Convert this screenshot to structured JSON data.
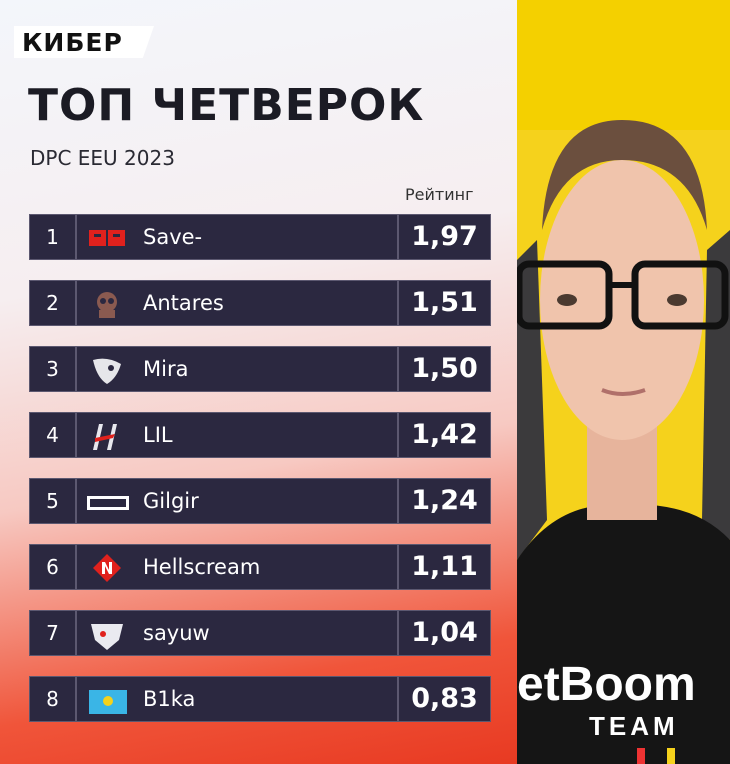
{
  "header": {
    "logo": "КИБЕР",
    "title": "ТОП ЧЕТВЕРОК",
    "subtitle": "DPC EEU 2023"
  },
  "table": {
    "rating_header": "Рейтинг",
    "rows": [
      {
        "rank": 1,
        "player": "Save-",
        "rating": "1,97"
      },
      {
        "rank": 2,
        "player": "Antares",
        "rating": "1,51"
      },
      {
        "rank": 3,
        "player": "Mira",
        "rating": "1,50"
      },
      {
        "rank": 4,
        "player": "LIL",
        "rating": "1,42"
      },
      {
        "rank": 5,
        "player": "Gilgir",
        "rating": "1,24"
      },
      {
        "rank": 6,
        "player": "Hellscream",
        "rating": "1,11"
      },
      {
        "rank": 7,
        "player": "sayuw",
        "rating": "1,04"
      },
      {
        "rank": 8,
        "player": "B1ka",
        "rating": "0,83"
      }
    ]
  },
  "photo": {
    "shirt_line1": "etBoom",
    "shirt_line2": "TEAM"
  }
}
